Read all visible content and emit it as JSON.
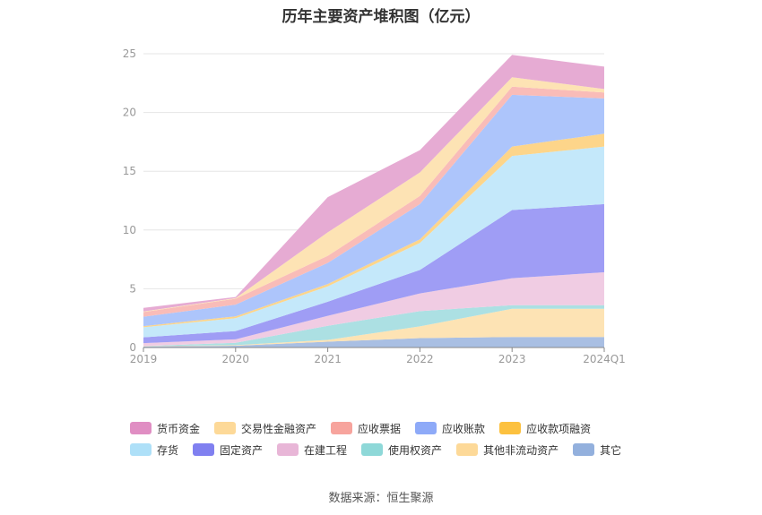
{
  "chart_data": {
    "type": "area",
    "stacked": true,
    "title": "历年主要资产堆积图（亿元）",
    "categories": [
      "2019",
      "2020",
      "2021",
      "2022",
      "2023",
      "2024Q1"
    ],
    "ylim": [
      0,
      25
    ],
    "yticks": [
      0,
      5,
      10,
      15,
      20,
      25
    ],
    "grid": true,
    "legend_position": "bottom",
    "series": [
      {
        "name": "其它",
        "color": "#a9bfe3",
        "values": [
          0.1,
          0.15,
          0.5,
          0.8,
          0.9,
          0.9
        ]
      },
      {
        "name": "其他非流动资产",
        "color": "#fde3b4",
        "values": [
          0.02,
          0.05,
          0.15,
          1.0,
          2.4,
          2.4
        ]
      },
      {
        "name": "使用权资产",
        "color": "#ace0e3",
        "values": [
          0.0,
          0.2,
          1.2,
          1.3,
          0.3,
          0.3
        ]
      },
      {
        "name": "在建工程",
        "color": "#f0cce3",
        "values": [
          0.25,
          0.3,
          0.85,
          1.5,
          2.3,
          2.8
        ]
      },
      {
        "name": "固定资产",
        "color": "#9f9df5",
        "values": [
          0.5,
          0.7,
          1.2,
          2.0,
          5.8,
          5.8
        ]
      },
      {
        "name": "存货",
        "color": "#c4e8fa",
        "values": [
          0.85,
          1.1,
          1.3,
          2.3,
          4.6,
          4.9
        ]
      },
      {
        "name": "应收款项融资",
        "color": "#fdd58a",
        "values": [
          0.1,
          0.15,
          0.2,
          0.3,
          0.8,
          1.1
        ]
      },
      {
        "name": "应收账款",
        "color": "#adc5fb",
        "values": [
          0.8,
          1.0,
          1.8,
          3.0,
          4.4,
          3.0
        ]
      },
      {
        "name": "应收票据",
        "color": "#f9bcb8",
        "values": [
          0.4,
          0.5,
          0.6,
          0.7,
          0.7,
          0.5
        ]
      },
      {
        "name": "交易性金融资产",
        "color": "#fde3b4",
        "values": [
          0.05,
          0.05,
          2.0,
          2.0,
          0.8,
          0.3
        ]
      },
      {
        "name": "货币资金",
        "color": "#e6abd3",
        "values": [
          0.3,
          0.1,
          3.0,
          1.9,
          1.9,
          1.9
        ]
      }
    ]
  },
  "legend": {
    "items": [
      {
        "name": "货币资金",
        "color": "#e08ec3"
      },
      {
        "name": "交易性金融资产",
        "color": "#fdd998"
      },
      {
        "name": "应收票据",
        "color": "#f7a49d"
      },
      {
        "name": "应收账款",
        "color": "#8eaaf8"
      },
      {
        "name": "应收款项融资",
        "color": "#fcc13f"
      },
      {
        "name": "存货",
        "color": "#aee0f8"
      },
      {
        "name": "固定资产",
        "color": "#8080f0"
      },
      {
        "name": "在建工程",
        "color": "#e8b6d7"
      },
      {
        "name": "使用权资产",
        "color": "#8ed8d8"
      },
      {
        "name": "其他非流动资产",
        "color": "#fdd998"
      },
      {
        "name": "其它",
        "color": "#93b0dd"
      }
    ]
  },
  "source": "数据来源：恒生聚源"
}
